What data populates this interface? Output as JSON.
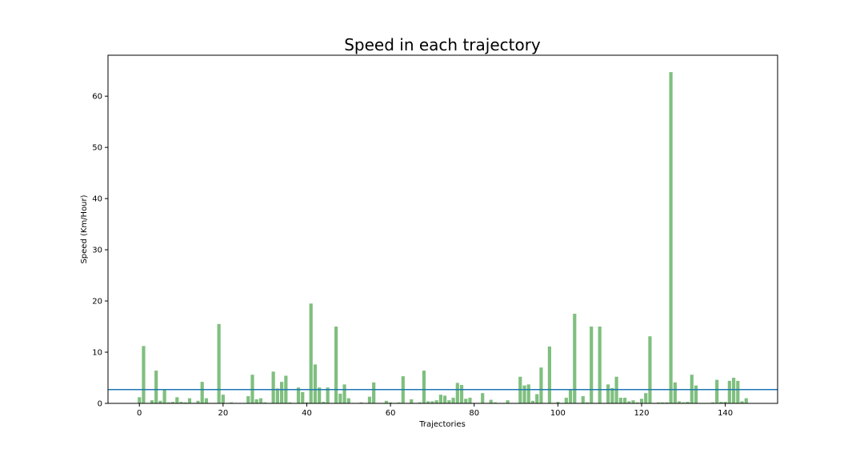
{
  "chart_data": {
    "type": "bar",
    "title": "Speed in each trajectory",
    "xlabel": "Trajectories",
    "ylabel": "Speed (Km/Hour)",
    "xlim": [
      -7.5,
      152.5
    ],
    "ylim": [
      0,
      68
    ],
    "xticks": [
      0,
      20,
      40,
      60,
      80,
      100,
      120,
      140
    ],
    "yticks": [
      0,
      10,
      20,
      30,
      40,
      50,
      60
    ],
    "bar_color": "#7fbf7f",
    "mean_line": {
      "value": 2.7,
      "color": "#1f77b4"
    },
    "x": [
      0,
      1,
      2,
      3,
      4,
      5,
      6,
      7,
      8,
      9,
      10,
      11,
      12,
      13,
      14,
      15,
      16,
      17,
      18,
      19,
      20,
      21,
      22,
      23,
      24,
      25,
      26,
      27,
      28,
      29,
      30,
      31,
      32,
      33,
      34,
      35,
      36,
      37,
      38,
      39,
      40,
      41,
      42,
      43,
      44,
      45,
      46,
      47,
      48,
      49,
      50,
      51,
      52,
      53,
      54,
      55,
      56,
      57,
      58,
      59,
      60,
      61,
      62,
      63,
      64,
      65,
      66,
      67,
      68,
      69,
      70,
      71,
      72,
      73,
      74,
      75,
      76,
      77,
      78,
      79,
      80,
      81,
      82,
      83,
      84,
      85,
      86,
      87,
      88,
      89,
      90,
      91,
      92,
      93,
      94,
      95,
      96,
      97,
      98,
      99,
      100,
      101,
      102,
      103,
      104,
      105,
      106,
      107,
      108,
      109,
      110,
      111,
      112,
      113,
      114,
      115,
      116,
      117,
      118,
      119,
      120,
      121,
      122,
      123,
      124,
      125,
      126,
      127,
      128,
      129,
      130,
      131,
      132,
      133,
      134,
      135,
      136,
      137,
      138,
      139,
      140,
      141,
      142,
      143,
      144,
      145
    ],
    "values": [
      1.2,
      11.2,
      0.1,
      0.6,
      6.4,
      0.5,
      2.6,
      0.2,
      0.3,
      1.2,
      0.3,
      0.2,
      1.0,
      0.1,
      0.5,
      4.2,
      1.0,
      0.1,
      0.1,
      15.5,
      1.7,
      0.1,
      0.2,
      0.1,
      0.1,
      0.1,
      1.4,
      5.6,
      0.8,
      1.0,
      0.2,
      0.1,
      6.2,
      2.9,
      4.2,
      5.4,
      0.2,
      0.1,
      3.1,
      2.2,
      0.2,
      19.5,
      7.6,
      3.1,
      0.3,
      3.1,
      0.1,
      15.0,
      1.9,
      3.7,
      1.0,
      0.1,
      0.1,
      0.2,
      0.1,
      1.3,
      4.1,
      0.1,
      0.1,
      0.5,
      0.2,
      0.1,
      0.2,
      5.3,
      0.1,
      0.8,
      0.1,
      0.2,
      6.4,
      0.4,
      0.4,
      0.6,
      1.7,
      1.5,
      0.6,
      1.1,
      4.0,
      3.6,
      0.9,
      1.1,
      0.1,
      0.1,
      2.0,
      0.1,
      0.7,
      0.2,
      0.1,
      0.1,
      0.6,
      0.1,
      0.1,
      5.2,
      3.5,
      3.7,
      0.5,
      1.8,
      7.0,
      0.1,
      11.1,
      0.1,
      0.3,
      0.1,
      1.1,
      2.8,
      17.5,
      0.1,
      1.4,
      0.2,
      15.0,
      0.1,
      15.0,
      0.1,
      3.7,
      3.0,
      5.2,
      1.1,
      1.1,
      0.4,
      0.6,
      0.2,
      0.9,
      2.0,
      13.1,
      0.1,
      0.2,
      0.2,
      0.2,
      64.7,
      4.1,
      0.4,
      0.2,
      0.3,
      5.6,
      3.5,
      0.1,
      0.1,
      0.1,
      0.2,
      4.6,
      0.3,
      0.3,
      4.4,
      5.0,
      4.4,
      0.4,
      1.0
    ]
  }
}
